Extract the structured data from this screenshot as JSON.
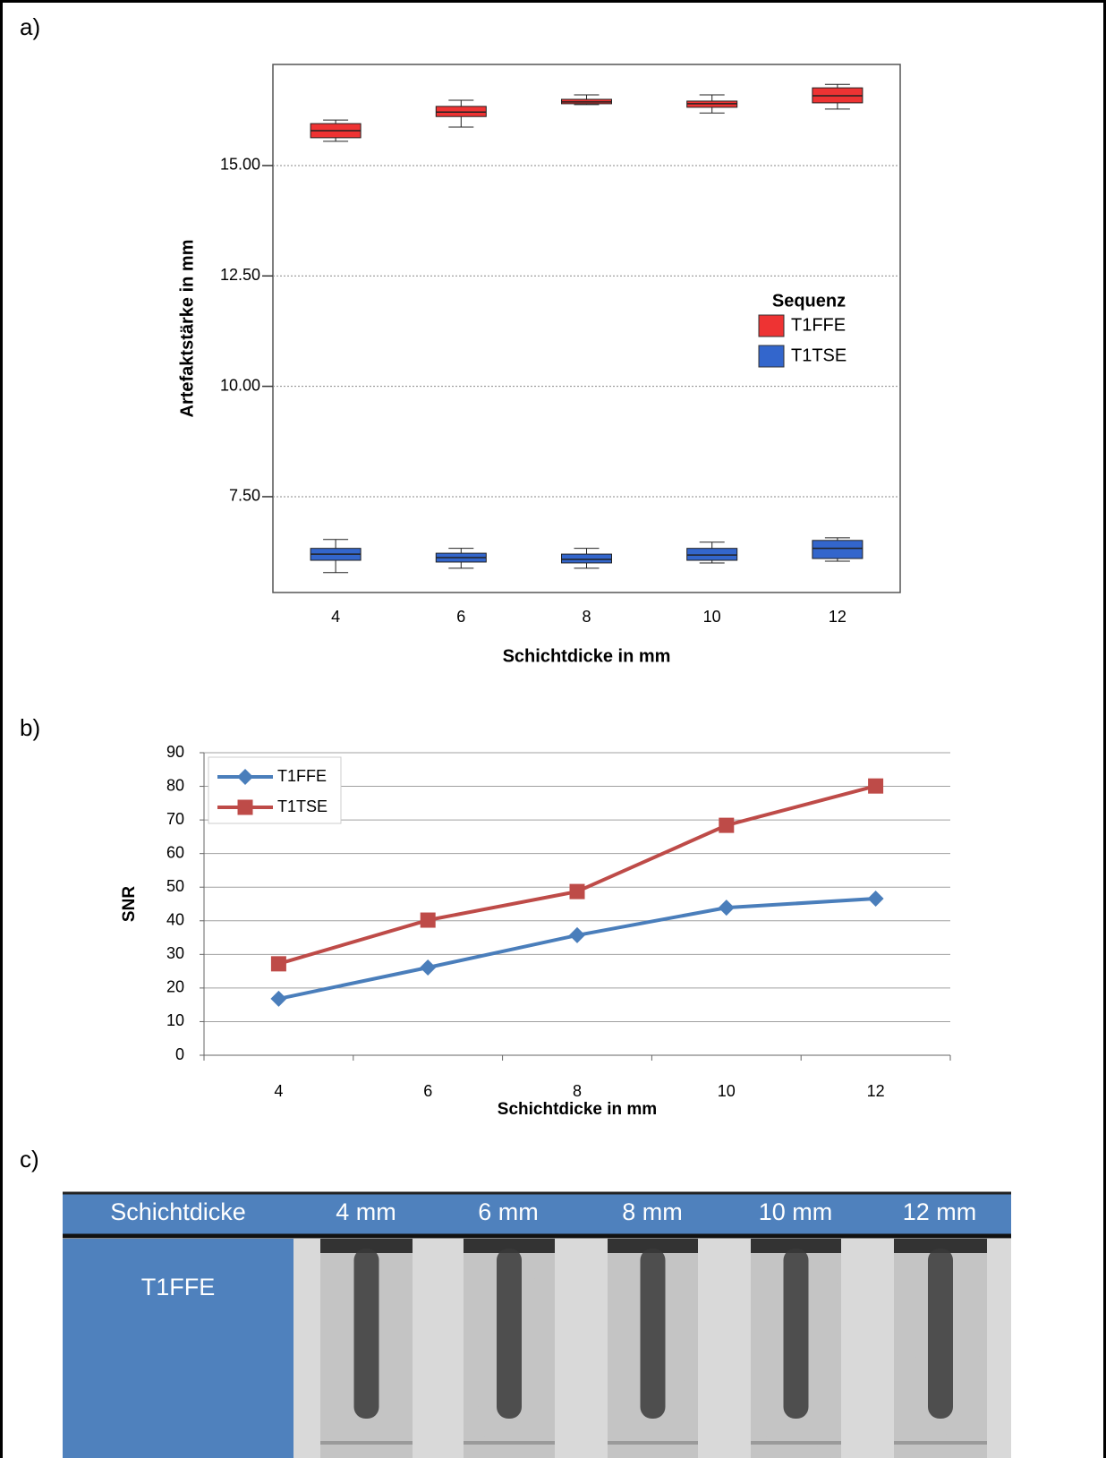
{
  "panel_labels": [
    "a)",
    "b)",
    "c)"
  ],
  "chart_data": [
    {
      "type": "box",
      "y_label": "Artefaktstärke in mm",
      "x_label": "Schichtdicke in mm",
      "categories": [
        "4",
        "6",
        "8",
        "10",
        "12"
      ],
      "ylim": [
        5.33,
        17.29
      ],
      "yticks": [
        {
          "value": 7.5,
          "label": "7.50"
        },
        {
          "value": 10,
          "label": "10.00"
        },
        {
          "value": 12.5,
          "label": "12.50"
        },
        {
          "value": 15,
          "label": "15.00"
        }
      ],
      "grid": true,
      "legend_title": "Sequenz",
      "legend": "right",
      "series": [
        {
          "name": "T1FFE",
          "color": "#ee3333",
          "values": [
            {
              "whislo": 15.55,
              "q1": 15.63,
              "med": 15.79,
              "q3": 15.95,
              "whishi": 16.03
            },
            {
              "whislo": 15.87,
              "q1": 16.11,
              "med": 16.21,
              "q3": 16.34,
              "whishi": 16.48
            },
            {
              "whislo": 16.38,
              "q1": 16.4,
              "med": 16.44,
              "q3": 16.5,
              "whishi": 16.6
            },
            {
              "whislo": 16.19,
              "q1": 16.32,
              "med": 16.4,
              "q3": 16.46,
              "whishi": 16.6
            },
            {
              "whislo": 16.28,
              "q1": 16.42,
              "med": 16.58,
              "q3": 16.76,
              "whishi": 16.84
            }
          ]
        },
        {
          "name": "T1TSE",
          "color": "#3366cc",
          "values": [
            {
              "whislo": 5.78,
              "q1": 6.06,
              "med": 6.2,
              "q3": 6.33,
              "whishi": 6.53
            },
            {
              "whislo": 5.88,
              "q1": 6.02,
              "med": 6.12,
              "q3": 6.22,
              "whishi": 6.33
            },
            {
              "whislo": 5.88,
              "q1": 6.0,
              "med": 6.08,
              "q3": 6.2,
              "whishi": 6.33
            },
            {
              "whislo": 6.0,
              "q1": 6.06,
              "med": 6.18,
              "q3": 6.33,
              "whishi": 6.47
            },
            {
              "whislo": 6.04,
              "q1": 6.1,
              "med": 6.33,
              "q3": 6.51,
              "whishi": 6.57
            }
          ]
        }
      ]
    },
    {
      "type": "line",
      "y_label": "SNR",
      "x_label": "Schichtdicke in mm",
      "categories": [
        "4",
        "6",
        "8",
        "10",
        "12"
      ],
      "ylim": [
        0,
        90
      ],
      "yticks": [
        0,
        10,
        20,
        30,
        40,
        50,
        60,
        70,
        80,
        90
      ],
      "grid": true,
      "legend": "upper left",
      "series": [
        {
          "name": "T1FFE",
          "color": "#4a7ebb",
          "marker": "diamond",
          "values": [
            16.8,
            26.1,
            35.7,
            43.9,
            46.6
          ]
        },
        {
          "name": "T1TSE",
          "color": "#be4b48",
          "marker": "square",
          "values": [
            27.2,
            40.2,
            48.7,
            68.4,
            80.1
          ]
        }
      ]
    }
  ],
  "table": {
    "header": [
      "Schichtdicke",
      "4 mm",
      "6 mm",
      "8 mm",
      "10 mm",
      "12 mm"
    ],
    "rows": [
      [
        "T1FFE"
      ]
    ]
  }
}
